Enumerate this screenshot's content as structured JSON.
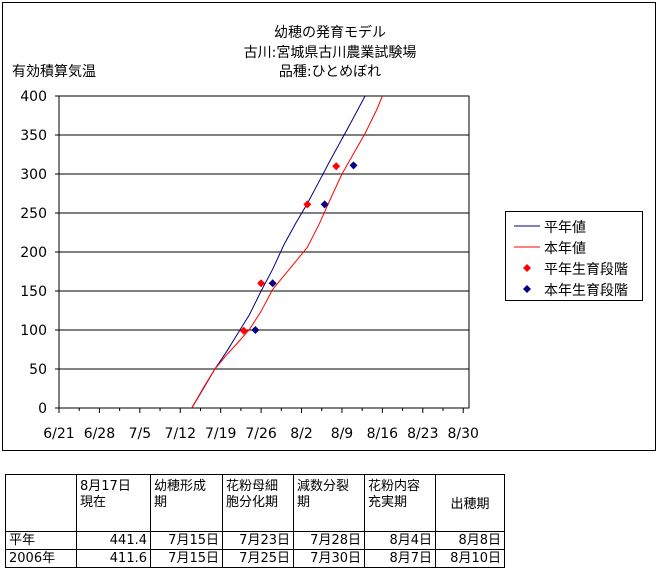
{
  "chart_data": {
    "type": "line",
    "title_lines": [
      "幼穂の発育モデル",
      "古川:宮城県古川農業試験場",
      "品種:ひとめぼれ"
    ],
    "ylabel": "有効積算気温",
    "xlabel": "",
    "x_ticks": [
      "6/21",
      "6/28",
      "7/5",
      "7/12",
      "7/19",
      "7/26",
      "8/2",
      "8/9",
      "8/16",
      "8/23",
      "8/30"
    ],
    "xlim": [
      "6/21",
      "8/31"
    ],
    "y_ticks": [
      0,
      50,
      100,
      150,
      200,
      250,
      300,
      350,
      400
    ],
    "ylim": [
      0,
      400
    ],
    "grid": "horizontal",
    "legend_position": "right",
    "series": [
      {
        "name": "平年値",
        "kind": "line",
        "color": "#000080",
        "points": [
          [
            "7/14",
            0
          ],
          [
            "7/16",
            25
          ],
          [
            "7/18",
            50
          ],
          [
            "7/20",
            72
          ],
          [
            "7/22",
            96
          ],
          [
            "7/24",
            120
          ],
          [
            "7/26",
            150
          ],
          [
            "7/28",
            178
          ],
          [
            "7/30",
            210
          ],
          [
            "8/1",
            237
          ],
          [
            "8/3",
            262
          ],
          [
            "8/5",
            290
          ],
          [
            "8/7",
            318
          ],
          [
            "8/9",
            345
          ],
          [
            "8/11",
            372
          ],
          [
            "8/13",
            400
          ]
        ]
      },
      {
        "name": "本年値",
        "kind": "line",
        "color": "#ff0000",
        "points": [
          [
            "7/14",
            0
          ],
          [
            "7/16",
            26
          ],
          [
            "7/18",
            50
          ],
          [
            "7/20",
            68
          ],
          [
            "7/22",
            84
          ],
          [
            "7/24",
            101
          ],
          [
            "7/26",
            124
          ],
          [
            "7/28",
            152
          ],
          [
            "7/30",
            170
          ],
          [
            "8/1",
            188
          ],
          [
            "8/3",
            206
          ],
          [
            "8/5",
            235
          ],
          [
            "8/7",
            268
          ],
          [
            "8/9",
            300
          ],
          [
            "8/11",
            326
          ],
          [
            "8/13",
            352
          ],
          [
            "8/15",
            382
          ],
          [
            "8/16",
            400
          ]
        ]
      },
      {
        "name": "平年生育段階",
        "kind": "marker",
        "color": "#ff0000",
        "points": [
          [
            "7/23",
            99
          ],
          [
            "7/26",
            160
          ],
          [
            "8/3",
            261
          ],
          [
            "8/8",
            310
          ]
        ]
      },
      {
        "name": "本年生育段階",
        "kind": "marker",
        "color": "#000080",
        "points": [
          [
            "7/25",
            100
          ],
          [
            "7/28",
            160
          ],
          [
            "8/6",
            261
          ],
          [
            "8/11",
            311
          ]
        ]
      }
    ]
  },
  "table": {
    "headers": [
      "",
      "8月17日\n現在",
      "幼穂形成\n期",
      "花粉母細\n胞分化期",
      "減数分裂\n期",
      "花粉内容\n充実期",
      "出穂期"
    ],
    "rows": [
      [
        "平年",
        "441.4",
        "7月15日",
        "7月23日",
        "7月28日",
        "8月4日",
        "8月8日"
      ],
      [
        "2006年",
        "411.6",
        "7月15日",
        "7月25日",
        "7月30日",
        "8月7日",
        "8月10日"
      ]
    ]
  }
}
